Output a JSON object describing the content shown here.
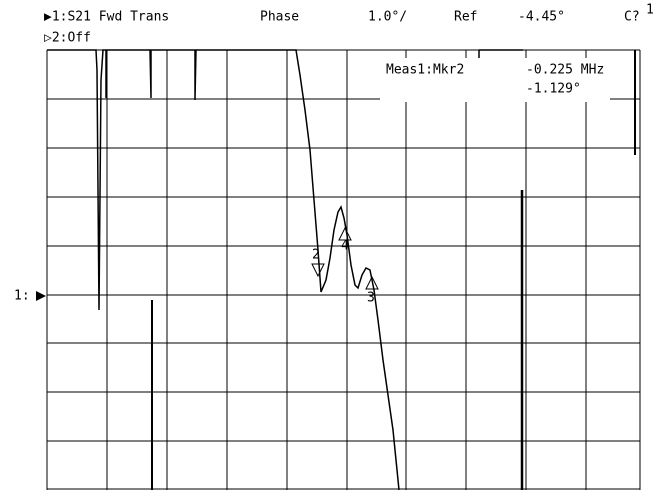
{
  "header": {
    "channel1": "▶1:S21 Fwd Trans",
    "format": "Phase",
    "scale": "1.0°/",
    "ref_label": "Ref",
    "ref_value": "-4.45°",
    "status": "C?",
    "channel2": "▷2:Off"
  },
  "readout": {
    "label": "Meas1:Mkr2",
    "stimulus": "-0.225 MHz",
    "response": "-1.129°"
  },
  "ref_marker": "1:",
  "markers": [
    "1",
    "2",
    "3",
    "4"
  ]
}
